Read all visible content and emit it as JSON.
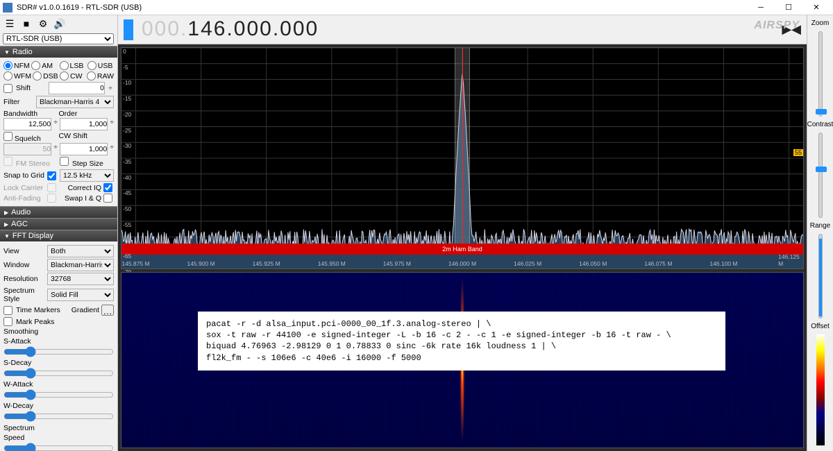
{
  "window": {
    "title": "SDR# v1.0.0.1619 - RTL-SDR (USB)"
  },
  "source": {
    "selected": "RTL-SDR (USB)"
  },
  "freqbar": {
    "grey_prefix": "000.",
    "digits": "146.000.000",
    "brand": "AIRSPY"
  },
  "radio": {
    "title": "Radio",
    "modes_row1": [
      "NFM",
      "AM",
      "LSB",
      "USB"
    ],
    "modes_row2": [
      "WFM",
      "DSB",
      "CW",
      "RAW"
    ],
    "selected_mode": "NFM",
    "shift_label": "Shift",
    "shift_value": "0",
    "filter_label": "Filter",
    "filter_value": "Blackman-Harris 4",
    "bandwidth_label": "Bandwidth",
    "order_label": "Order",
    "bandwidth_value": "12,500",
    "order_value": "1,000",
    "squelch_label": "Squelch",
    "cwshift_label": "CW Shift",
    "squelch_value": "50",
    "cwshift_value": "1,000",
    "fmstereo_label": "FM Stereo",
    "stepsize_label": "Step Size",
    "snap_label": "Snap to Grid",
    "snap_value": "12.5 kHz",
    "lock_label": "Lock Carrier",
    "correctiq_label": "Correct IQ",
    "antifading_label": "Anti-Fading",
    "swapiq_label": "Swap I & Q"
  },
  "panels": {
    "audio": "Audio",
    "agc": "AGC",
    "fft": "FFT Display"
  },
  "fft": {
    "view_label": "View",
    "view_value": "Both",
    "window_label": "Window",
    "window_value": "Blackman-Harris 4",
    "resolution_label": "Resolution",
    "resolution_value": "32768",
    "style_label": "Spectrum Style",
    "style_value": "Solid Fill",
    "timemarkers_label": "Time Markers",
    "gradient_label": "Gradient",
    "markpeaks_label": "Mark Peaks",
    "smoothing_label": "Smoothing",
    "s_attack": "S-Attack",
    "s_decay": "S-Decay",
    "w_attack": "W-Attack",
    "w_decay": "W-Decay",
    "spectrum_label": "Spectrum",
    "speed_label": "Speed"
  },
  "spectrum": {
    "y_ticks": [
      0,
      -5,
      -10,
      -15,
      -20,
      -25,
      -30,
      -35,
      -40,
      -45,
      -50,
      -55,
      -60,
      -65,
      -70
    ],
    "y_min": -70,
    "y_max": 0,
    "x_labels": [
      "145.875 M",
      "145.900 M",
      "145.925 M",
      "145.950 M",
      "145.975 M",
      "146.000 M",
      "146.025 M",
      "146.050 M",
      "146.075 M",
      "146.100 M",
      "146.125 M"
    ],
    "noise_floor_db": -61,
    "noise_amplitude_db": 3.5,
    "peak_center": 0.5,
    "peak_db": -8,
    "peak_halfwidth": 0.014,
    "fill_color": "#2a4a6a",
    "line_color": "#d8d8e8",
    "grid_color": "#333333",
    "red_label": "2m Ham Band",
    "yellow_marker": "55"
  },
  "right_sliders": {
    "zoom": "Zoom",
    "contrast": "Contrast",
    "range": "Range",
    "offset": "Offset"
  },
  "console": "pacat -r -d alsa_input.pci-0000_00_1f.3.analog-stereo | \\\nsox -t raw -r 44100 -e signed-integer -L -b 16 -c 2 - -c 1 -e signed-integer -b 16 -t raw - \\\nbiquad 4.76963 -2.98129 0 1 0.78833 0 sinc -6k rate 16k loudness 1 | \\\nfl2k_fm - -s 106e6 -c 40e6 -i 16000 -f 5000"
}
